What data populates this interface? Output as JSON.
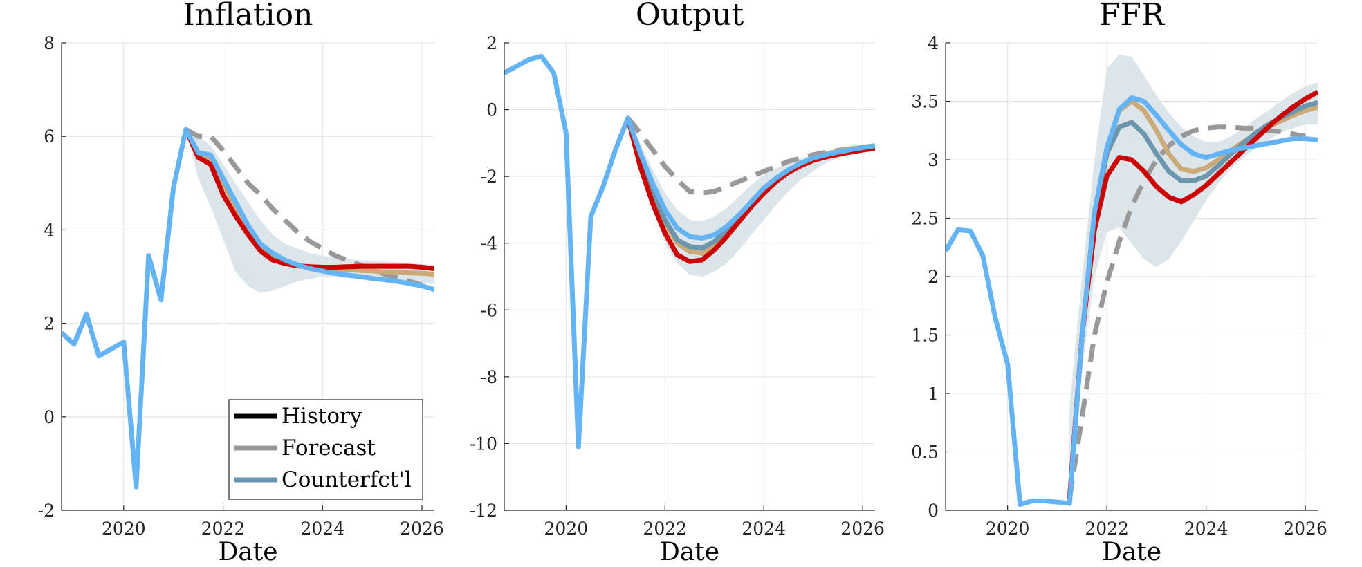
{
  "chart_data": [
    {
      "type": "line",
      "title": "Inflation",
      "xlabel": "Date",
      "ylabel": "",
      "xlim": [
        2018.75,
        2026.25
      ],
      "ylim": [
        -2,
        8
      ],
      "xticks": [
        2020,
        2022,
        2024,
        2026
      ],
      "yticks": [
        -2,
        0,
        2,
        4,
        6,
        8
      ],
      "grid": true,
      "legend": {
        "placement": "bottom-right",
        "entries": [
          {
            "label": "History",
            "color": "#000000",
            "dash": false
          },
          {
            "label": "Forecast",
            "color": "#999999",
            "dash": false
          },
          {
            "label": "Counterfct'l",
            "color": "#6b96ad",
            "dash": false
          }
        ]
      },
      "band": {
        "color": "#dce6ea",
        "x": [
          2021.25,
          2021.5,
          2021.75,
          2022.0,
          2022.25,
          2022.5,
          2022.75,
          2023.0,
          2023.25,
          2023.5,
          2023.75,
          2024.0,
          2024.25,
          2024.5,
          2024.75,
          2025.0,
          2025.25,
          2025.5,
          2025.75,
          2026.0,
          2026.25
        ],
        "upper": [
          6.15,
          6.0,
          5.8,
          5.4,
          5.0,
          4.6,
          4.2,
          3.9,
          3.7,
          3.6,
          3.5,
          3.45,
          3.4,
          3.38,
          3.35,
          3.33,
          3.32,
          3.3,
          3.28,
          3.27,
          3.25
        ],
        "lower": [
          6.15,
          5.1,
          4.5,
          3.8,
          3.1,
          2.8,
          2.65,
          2.7,
          2.8,
          2.9,
          2.95,
          3.0,
          3.0,
          3.0,
          3.0,
          2.98,
          2.95,
          2.92,
          2.88,
          2.85,
          2.85
        ]
      },
      "series": [
        {
          "color": "#999999",
          "dash": true,
          "x": [
            2021.25,
            2021.5,
            2021.75,
            2022.0,
            2022.25,
            2022.5,
            2022.75,
            2023.0,
            2023.25,
            2023.5,
            2023.75,
            2024.0,
            2024.25,
            2024.5,
            2024.75,
            2025.0,
            2025.25,
            2025.5,
            2025.75,
            2026.0
          ],
          "values": [
            6.15,
            6.0,
            6.0,
            5.7,
            5.35,
            5.0,
            4.75,
            4.45,
            4.2,
            3.95,
            3.75,
            3.6,
            3.45,
            3.35,
            3.25,
            3.15,
            3.05,
            2.98,
            2.9,
            2.82
          ]
        },
        {
          "color": "#c9aa78",
          "dash": false,
          "x": [
            2021.25,
            2021.5,
            2021.75,
            2022.0,
            2022.25,
            2022.5,
            2022.75,
            2023.0,
            2023.25,
            2023.5,
            2023.75,
            2024.0,
            2024.25,
            2024.5,
            2024.75,
            2025.0,
            2025.25,
            2025.5,
            2025.75,
            2026.0,
            2026.25
          ],
          "values": [
            6.15,
            5.6,
            5.5,
            5.0,
            4.5,
            4.0,
            3.65,
            3.4,
            3.3,
            3.25,
            3.2,
            3.18,
            3.16,
            3.15,
            3.13,
            3.12,
            3.1,
            3.1,
            3.08,
            3.07,
            3.05
          ]
        },
        {
          "color": "#cc0000",
          "dash": false,
          "x": [
            2021.25,
            2021.5,
            2021.75,
            2022.0,
            2022.25,
            2022.5,
            2022.75,
            2023.0,
            2023.25,
            2023.5,
            2023.75,
            2024.0,
            2024.25,
            2024.5,
            2024.75,
            2025.0,
            2025.25,
            2025.5,
            2025.75,
            2026.0,
            2026.25
          ],
          "values": [
            6.15,
            5.55,
            5.4,
            4.75,
            4.3,
            3.9,
            3.55,
            3.35,
            3.28,
            3.23,
            3.21,
            3.2,
            3.2,
            3.21,
            3.22,
            3.22,
            3.22,
            3.22,
            3.22,
            3.2,
            3.17
          ]
        },
        {
          "color": "#64b4f5",
          "dash": false,
          "x": [
            2018.75,
            2019.0,
            2019.25,
            2019.5,
            2019.75,
            2020.0,
            2020.25,
            2020.5,
            2020.75,
            2021.0,
            2021.25,
            2021.5,
            2021.75,
            2022.0,
            2022.25,
            2022.5,
            2022.75,
            2023.0,
            2023.25,
            2023.5,
            2023.75,
            2024.0,
            2024.25,
            2024.5,
            2024.75,
            2025.0,
            2025.25,
            2025.5,
            2025.75,
            2026.0,
            2026.25
          ],
          "values": [
            1.8,
            1.55,
            2.2,
            1.3,
            1.45,
            1.6,
            -1.5,
            3.45,
            2.5,
            4.9,
            6.15,
            5.65,
            5.6,
            5.1,
            4.6,
            4.1,
            3.7,
            3.5,
            3.35,
            3.25,
            3.17,
            3.12,
            3.07,
            3.03,
            3.0,
            2.96,
            2.93,
            2.9,
            2.85,
            2.8,
            2.72
          ]
        }
      ]
    },
    {
      "type": "line",
      "title": "Output",
      "xlabel": "Date",
      "ylabel": "",
      "xlim": [
        2018.75,
        2026.25
      ],
      "ylim": [
        -12,
        2
      ],
      "xticks": [
        2020,
        2022,
        2024,
        2026
      ],
      "yticks": [
        -12,
        -10,
        -8,
        -6,
        -4,
        -2,
        0,
        2
      ],
      "grid": true,
      "band": {
        "color": "#dce6ea",
        "x": [
          2021.25,
          2021.5,
          2021.75,
          2022.0,
          2022.25,
          2022.5,
          2022.75,
          2023.0,
          2023.25,
          2023.5,
          2023.75,
          2024.0,
          2024.25,
          2024.5,
          2024.75,
          2025.0,
          2025.25,
          2025.5,
          2025.75,
          2026.0,
          2026.25
        ],
        "upper": [
          -0.25,
          -1.0,
          -1.8,
          -2.5,
          -3.0,
          -3.3,
          -3.35,
          -3.2,
          -2.95,
          -2.6,
          -2.25,
          -1.95,
          -1.75,
          -1.6,
          -1.45,
          -1.35,
          -1.25,
          -1.2,
          -1.15,
          -1.1,
          -1.05
        ],
        "lower": [
          -0.25,
          -1.8,
          -3.0,
          -4.0,
          -4.6,
          -4.95,
          -5.0,
          -4.85,
          -4.6,
          -4.2,
          -3.75,
          -3.3,
          -2.85,
          -2.45,
          -2.1,
          -1.85,
          -1.6,
          -1.45,
          -1.35,
          -1.25,
          -1.2
        ]
      },
      "series": [
        {
          "color": "#999999",
          "dash": true,
          "x": [
            2021.25,
            2021.5,
            2021.75,
            2022.0,
            2022.25,
            2022.5,
            2022.75,
            2023.0,
            2023.25,
            2023.5,
            2023.75,
            2024.0,
            2024.25,
            2024.5,
            2024.75,
            2025.0,
            2025.25,
            2025.5,
            2025.75,
            2026.0
          ],
          "values": [
            -0.25,
            -0.7,
            -1.2,
            -1.7,
            -2.1,
            -2.45,
            -2.5,
            -2.45,
            -2.3,
            -2.15,
            -2.0,
            -1.85,
            -1.7,
            -1.55,
            -1.45,
            -1.35,
            -1.28,
            -1.22,
            -1.17,
            -1.12
          ]
        },
        {
          "color": "#c9aa78",
          "dash": false,
          "x": [
            2021.25,
            2021.5,
            2021.75,
            2022.0,
            2022.25,
            2022.5,
            2022.75,
            2023.0,
            2023.25,
            2023.5,
            2023.75,
            2024.0,
            2024.25,
            2024.5,
            2024.75,
            2025.0,
            2025.25,
            2025.5,
            2025.75,
            2026.0,
            2026.25
          ],
          "values": [
            -0.25,
            -1.5,
            -2.5,
            -3.4,
            -4.0,
            -4.25,
            -4.3,
            -4.1,
            -3.75,
            -3.3,
            -2.9,
            -2.5,
            -2.15,
            -1.85,
            -1.62,
            -1.45,
            -1.33,
            -1.25,
            -1.18,
            -1.12,
            -1.08
          ]
        },
        {
          "color": "#6b96ad",
          "dash": false,
          "x": [
            2021.25,
            2021.5,
            2021.75,
            2022.0,
            2022.25,
            2022.5,
            2022.75,
            2023.0,
            2023.25,
            2023.5,
            2023.75,
            2024.0
          ],
          "values": [
            -0.25,
            -1.4,
            -2.4,
            -3.3,
            -3.9,
            -4.1,
            -4.15,
            -3.95,
            -3.6,
            -3.2,
            -2.8,
            -2.4
          ]
        },
        {
          "color": "#cc0000",
          "dash": false,
          "x": [
            2021.25,
            2021.5,
            2021.75,
            2022.0,
            2022.25,
            2022.5,
            2022.75,
            2023.0,
            2023.25,
            2023.5,
            2023.75,
            2024.0,
            2024.25,
            2024.5,
            2024.75,
            2025.0,
            2025.25,
            2025.5,
            2025.75,
            2026.0,
            2026.25
          ],
          "values": [
            -0.25,
            -1.7,
            -2.8,
            -3.7,
            -4.35,
            -4.55,
            -4.5,
            -4.2,
            -3.8,
            -3.35,
            -2.9,
            -2.5,
            -2.15,
            -1.88,
            -1.68,
            -1.52,
            -1.42,
            -1.34,
            -1.27,
            -1.21,
            -1.16
          ]
        },
        {
          "color": "#64b4f5",
          "dash": false,
          "x": [
            2018.75,
            2019.0,
            2019.25,
            2019.5,
            2019.75,
            2020.0,
            2020.25,
            2020.5,
            2020.75,
            2021.0,
            2021.25,
            2021.5,
            2021.75,
            2022.0,
            2022.25,
            2022.5,
            2022.75,
            2023.0,
            2023.25,
            2023.5,
            2023.75,
            2024.0,
            2024.25,
            2024.5,
            2024.75,
            2025.0,
            2025.25,
            2025.5,
            2025.75,
            2026.0,
            2026.25
          ],
          "values": [
            1.1,
            1.3,
            1.5,
            1.6,
            1.1,
            -0.7,
            -10.1,
            -3.2,
            -2.3,
            -1.2,
            -0.25,
            -1.3,
            -2.2,
            -3.0,
            -3.55,
            -3.8,
            -3.85,
            -3.75,
            -3.5,
            -3.15,
            -2.75,
            -2.35,
            -2.05,
            -1.8,
            -1.6,
            -1.45,
            -1.35,
            -1.27,
            -1.2,
            -1.14,
            -1.08
          ]
        }
      ]
    },
    {
      "type": "line",
      "title": "FFR",
      "xlabel": "Date",
      "ylabel": "",
      "xlim": [
        2018.75,
        2026.25
      ],
      "ylim": [
        0,
        4
      ],
      "xticks": [
        2020,
        2022,
        2024,
        2026
      ],
      "yticks": [
        0,
        0.5,
        1,
        1.5,
        2,
        2.5,
        3,
        3.5,
        4
      ],
      "grid": true,
      "band": {
        "color": "#dce6ea",
        "x": [
          2021.25,
          2021.5,
          2021.75,
          2022.0,
          2022.25,
          2022.5,
          2022.75,
          2023.0,
          2023.25,
          2023.5,
          2023.75,
          2024.0,
          2024.25,
          2024.5,
          2024.75,
          2025.0,
          2025.25,
          2025.5,
          2025.75,
          2026.0,
          2026.25
        ],
        "upper": [
          0.9,
          2.0,
          3.0,
          3.78,
          3.9,
          3.88,
          3.72,
          3.55,
          3.4,
          3.28,
          3.2,
          3.15,
          3.15,
          3.2,
          3.27,
          3.35,
          3.42,
          3.5,
          3.57,
          3.63,
          3.66
        ],
        "lower": [
          0.1,
          1.2,
          2.0,
          2.38,
          2.42,
          2.28,
          2.15,
          2.08,
          2.15,
          2.3,
          2.48,
          2.65,
          2.8,
          2.92,
          3.02,
          3.1,
          3.17,
          3.23,
          3.27,
          3.3,
          3.3
        ]
      },
      "series": [
        {
          "color": "#999999",
          "dash": true,
          "x": [
            2021.25,
            2021.5,
            2021.75,
            2022.0,
            2022.25,
            2022.5,
            2022.75,
            2023.0,
            2023.25,
            2023.5,
            2023.75,
            2024.0,
            2024.25,
            2024.5,
            2024.75,
            2025.0,
            2025.25,
            2025.5,
            2025.75,
            2026.0
          ],
          "values": [
            0.1,
            0.8,
            1.5,
            1.95,
            2.3,
            2.6,
            2.82,
            3.0,
            3.12,
            3.2,
            3.25,
            3.27,
            3.28,
            3.28,
            3.27,
            3.27,
            3.25,
            3.24,
            3.22,
            3.2
          ]
        },
        {
          "color": "#c9aa78",
          "dash": false,
          "x": [
            2021.25,
            2021.5,
            2021.75,
            2022.0,
            2022.25,
            2022.5,
            2022.75,
            2023.0,
            2023.25,
            2023.5,
            2023.75,
            2024.0,
            2024.25,
            2024.5,
            2024.75,
            2025.0,
            2025.25,
            2025.5,
            2025.75,
            2026.0,
            2026.25
          ],
          "values": [
            0.1,
            1.5,
            2.55,
            3.1,
            3.42,
            3.5,
            3.42,
            3.25,
            3.05,
            2.92,
            2.9,
            2.93,
            3.0,
            3.08,
            3.15,
            3.22,
            3.28,
            3.33,
            3.38,
            3.42,
            3.45
          ]
        },
        {
          "color": "#6b96ad",
          "dash": false,
          "x": [
            2021.25,
            2021.5,
            2021.75,
            2022.0,
            2022.25,
            2022.5,
            2022.75,
            2023.0,
            2023.25,
            2023.5,
            2023.75,
            2024.0,
            2024.25,
            2024.5,
            2024.75,
            2025.0,
            2025.25,
            2025.5,
            2025.75,
            2026.0,
            2026.25
          ],
          "values": [
            0.1,
            1.5,
            2.5,
            3.05,
            3.28,
            3.32,
            3.22,
            3.05,
            2.9,
            2.82,
            2.82,
            2.86,
            2.95,
            3.05,
            3.14,
            3.23,
            3.3,
            3.36,
            3.41,
            3.46,
            3.49
          ]
        },
        {
          "color": "#cc0000",
          "dash": false,
          "x": [
            2021.25,
            2021.5,
            2021.75,
            2022.0,
            2022.25,
            2022.5,
            2022.75,
            2023.0,
            2023.25,
            2023.5,
            2023.75,
            2024.0,
            2024.25,
            2024.5,
            2024.75,
            2025.0,
            2025.25,
            2025.5,
            2025.75,
            2026.0,
            2026.25
          ],
          "values": [
            0.1,
            1.5,
            2.4,
            2.86,
            3.02,
            3.0,
            2.9,
            2.77,
            2.68,
            2.64,
            2.7,
            2.78,
            2.88,
            2.98,
            3.08,
            3.18,
            3.28,
            3.37,
            3.45,
            3.52,
            3.58
          ]
        },
        {
          "color": "#64b4f5",
          "dash": false,
          "x": [
            2018.75,
            2019.0,
            2019.25,
            2019.5,
            2019.75,
            2020.0,
            2020.25,
            2020.5,
            2020.75,
            2021.0,
            2021.25,
            2021.5,
            2021.75,
            2022.0,
            2022.25,
            2022.5,
            2022.75,
            2023.0,
            2023.25,
            2023.5,
            2023.75,
            2024.0,
            2024.25,
            2024.5,
            2024.75,
            2025.0,
            2025.25,
            2025.5,
            2025.75,
            2026.0,
            2026.25
          ],
          "values": [
            2.22,
            2.4,
            2.39,
            2.18,
            1.65,
            1.25,
            0.05,
            0.08,
            0.08,
            0.07,
            0.06,
            1.5,
            2.55,
            3.1,
            3.43,
            3.53,
            3.5,
            3.38,
            3.25,
            3.13,
            3.05,
            3.02,
            3.05,
            3.08,
            3.1,
            3.12,
            3.14,
            3.16,
            3.18,
            3.18,
            3.17
          ]
        }
      ]
    }
  ]
}
